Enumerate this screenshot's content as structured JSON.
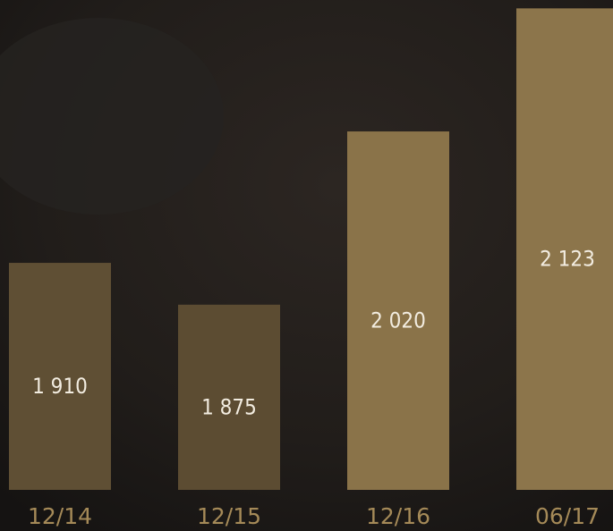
{
  "chart_data": {
    "type": "bar",
    "categories": [
      "12/14",
      "12/15",
      "12/16",
      "06/17"
    ],
    "values": [
      1910,
      1875,
      2020,
      2123
    ],
    "value_labels": [
      "1 910",
      "1 875",
      "2 020",
      "2 123"
    ],
    "colors": [
      "#5f4f34",
      "#5c4c32",
      "#8a7349",
      "#8c754b"
    ],
    "ylim": [
      1720,
      2130
    ]
  }
}
